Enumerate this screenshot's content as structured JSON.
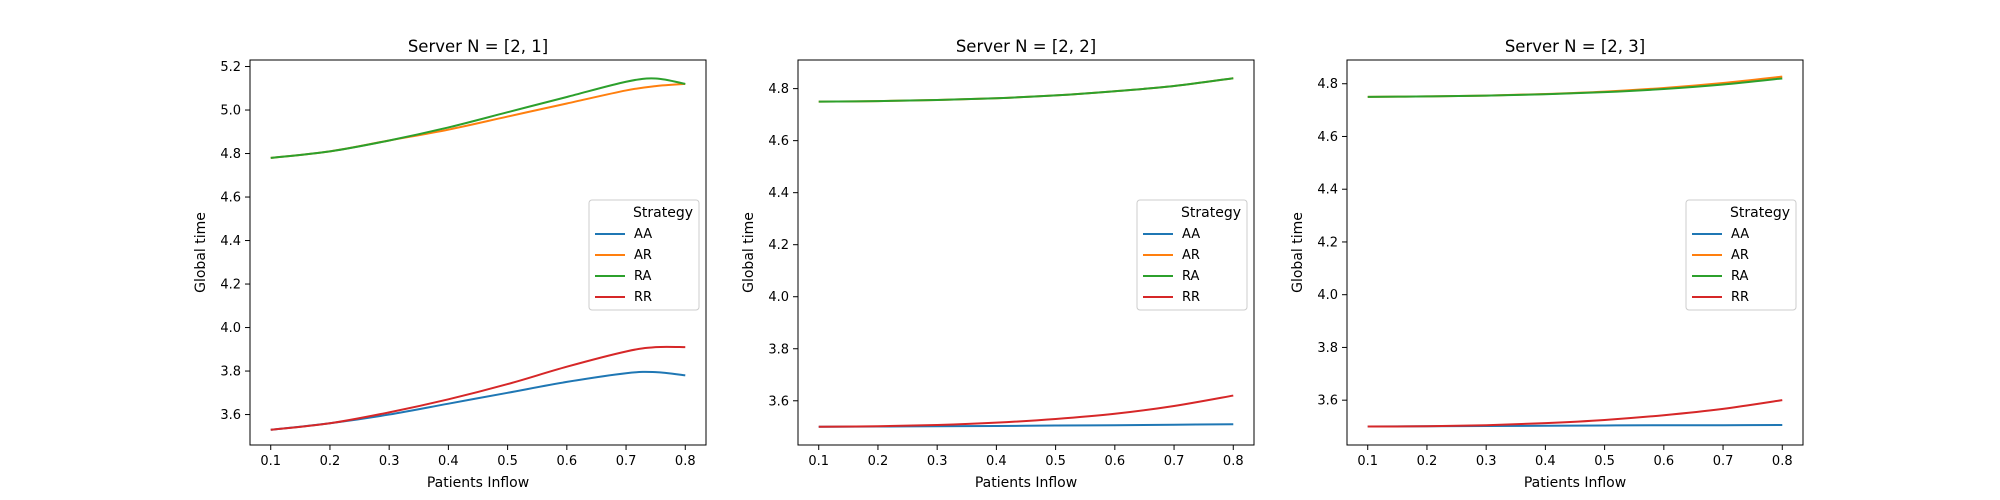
{
  "chart_data": [
    {
      "type": "line",
      "title": "Server N = [2, 1]",
      "xlabel": "Patients Inflow",
      "ylabel": "Global time",
      "xlim": [
        0.065,
        0.835
      ],
      "ylim": [
        3.46,
        5.23
      ],
      "xticks": [
        "0.1",
        "0.2",
        "0.3",
        "0.4",
        "0.5",
        "0.6",
        "0.7",
        "0.8"
      ],
      "yticks": [
        "3.6",
        "3.8",
        "4.0",
        "4.2",
        "4.4",
        "4.6",
        "4.8",
        "5.0",
        "5.2"
      ],
      "legend": {
        "title": "Strategy",
        "position": "center-right"
      },
      "grid": false,
      "x": [
        0.1,
        0.2,
        0.3,
        0.4,
        0.5,
        0.6,
        0.7,
        0.75,
        0.8
      ],
      "series": [
        {
          "name": "AA",
          "color": "#1f77b4",
          "values": [
            3.53,
            3.56,
            3.6,
            3.65,
            3.7,
            3.75,
            3.79,
            3.795,
            3.78
          ]
        },
        {
          "name": "AR",
          "color": "#ff7f0e",
          "values": [
            4.78,
            4.81,
            4.86,
            4.91,
            4.97,
            5.03,
            5.09,
            5.11,
            5.12
          ]
        },
        {
          "name": "RA",
          "color": "#2ca02c",
          "values": [
            4.78,
            4.81,
            4.86,
            4.92,
            4.99,
            5.06,
            5.13,
            5.145,
            5.12
          ]
        },
        {
          "name": "RR",
          "color": "#d62728",
          "values": [
            3.53,
            3.56,
            3.61,
            3.67,
            3.74,
            3.82,
            3.89,
            3.91,
            3.91
          ]
        }
      ]
    },
    {
      "type": "line",
      "title": "Server N = [2, 2]",
      "xlabel": "Patients Inflow",
      "ylabel": "Global time",
      "xlim": [
        0.065,
        0.835
      ],
      "ylim": [
        3.43,
        4.91
      ],
      "xticks": [
        "0.1",
        "0.2",
        "0.3",
        "0.4",
        "0.5",
        "0.6",
        "0.7",
        "0.8"
      ],
      "yticks": [
        "3.6",
        "3.8",
        "4.0",
        "4.2",
        "4.4",
        "4.6",
        "4.8"
      ],
      "legend": {
        "title": "Strategy",
        "position": "center-right"
      },
      "grid": false,
      "x": [
        0.1,
        0.2,
        0.3,
        0.4,
        0.5,
        0.6,
        0.7,
        0.8
      ],
      "series": [
        {
          "name": "AA",
          "color": "#1f77b4",
          "values": [
            3.5,
            3.501,
            3.502,
            3.503,
            3.505,
            3.506,
            3.508,
            3.51
          ]
        },
        {
          "name": "AR",
          "color": "#ff7f0e",
          "values": [
            4.75,
            4.752,
            4.756,
            4.763,
            4.774,
            4.79,
            4.81,
            4.84
          ]
        },
        {
          "name": "RA",
          "color": "#2ca02c",
          "values": [
            4.75,
            4.752,
            4.756,
            4.763,
            4.774,
            4.79,
            4.81,
            4.84
          ]
        },
        {
          "name": "RR",
          "color": "#d62728",
          "values": [
            3.5,
            3.502,
            3.507,
            3.516,
            3.53,
            3.55,
            3.58,
            3.62
          ]
        }
      ]
    },
    {
      "type": "line",
      "title": "Server N = [2, 3]",
      "xlabel": "Patients Inflow",
      "ylabel": "Global time",
      "xlim": [
        0.065,
        0.835
      ],
      "ylim": [
        3.43,
        4.89
      ],
      "xticks": [
        "0.1",
        "0.2",
        "0.3",
        "0.4",
        "0.5",
        "0.6",
        "0.7",
        "0.8"
      ],
      "yticks": [
        "3.6",
        "3.8",
        "4.0",
        "4.2",
        "4.4",
        "4.6",
        "4.8"
      ],
      "legend": {
        "title": "Strategy",
        "position": "center-right"
      },
      "grid": false,
      "x": [
        0.1,
        0.2,
        0.3,
        0.4,
        0.5,
        0.6,
        0.7,
        0.8
      ],
      "series": [
        {
          "name": "AA",
          "color": "#1f77b4",
          "values": [
            3.5,
            3.501,
            3.502,
            3.503,
            3.504,
            3.505,
            3.505,
            3.506
          ]
        },
        {
          "name": "AR",
          "color": "#ff7f0e",
          "values": [
            4.75,
            4.752,
            4.755,
            4.761,
            4.77,
            4.784,
            4.803,
            4.827
          ]
        },
        {
          "name": "RA",
          "color": "#2ca02c",
          "values": [
            4.75,
            4.752,
            4.755,
            4.76,
            4.768,
            4.78,
            4.797,
            4.82
          ]
        },
        {
          "name": "RR",
          "color": "#d62728",
          "values": [
            3.5,
            3.501,
            3.505,
            3.513,
            3.525,
            3.543,
            3.567,
            3.6
          ]
        }
      ]
    }
  ]
}
